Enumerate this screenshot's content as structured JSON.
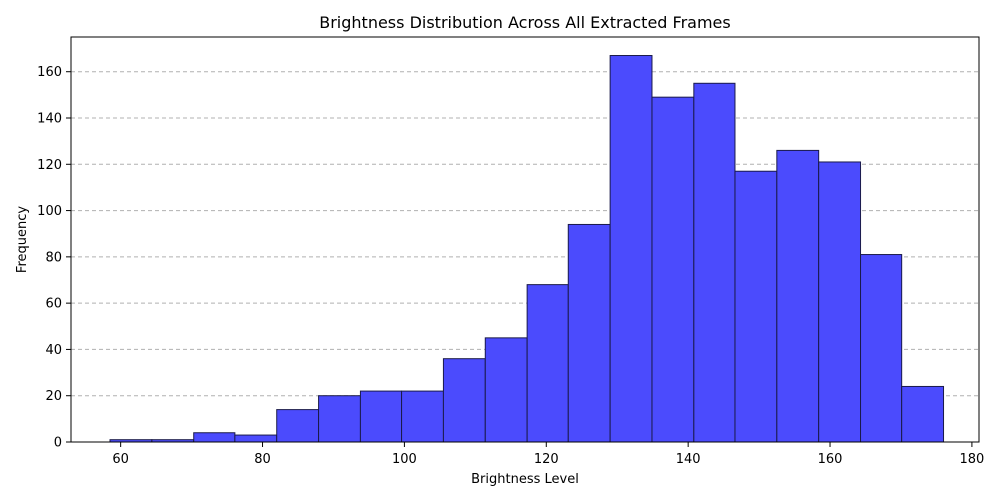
{
  "chart_data": {
    "type": "bar",
    "title": "Brightness Distribution Across All Extracted Frames",
    "xlabel": "Brightness Level",
    "ylabel": "Frequency",
    "xlim": [
      53,
      181
    ],
    "ylim": [
      0,
      175
    ],
    "x_ticks": [
      60,
      80,
      100,
      120,
      140,
      160,
      180
    ],
    "y_ticks": [
      0,
      20,
      40,
      60,
      80,
      100,
      120,
      140,
      160
    ],
    "grid": "y-dashed",
    "bar_color": "#4b4bfd",
    "edge_color": "#1a1a4a",
    "bins": [
      {
        "x0": 58.5,
        "x1": 64.4,
        "count": 1
      },
      {
        "x0": 64.4,
        "x1": 70.3,
        "count": 1
      },
      {
        "x0": 70.3,
        "x1": 76.1,
        "count": 4
      },
      {
        "x0": 76.1,
        "x1": 82.0,
        "count": 3
      },
      {
        "x0": 82.0,
        "x1": 87.9,
        "count": 14
      },
      {
        "x0": 87.9,
        "x1": 93.8,
        "count": 20
      },
      {
        "x0": 93.8,
        "x1": 99.6,
        "count": 22
      },
      {
        "x0": 99.6,
        "x1": 105.5,
        "count": 22
      },
      {
        "x0": 105.5,
        "x1": 111.4,
        "count": 36
      },
      {
        "x0": 111.4,
        "x1": 117.3,
        "count": 45
      },
      {
        "x0": 117.3,
        "x1": 123.1,
        "count": 68
      },
      {
        "x0": 123.1,
        "x1": 129.0,
        "count": 94
      },
      {
        "x0": 129.0,
        "x1": 134.9,
        "count": 167
      },
      {
        "x0": 134.9,
        "x1": 140.8,
        "count": 149
      },
      {
        "x0": 140.8,
        "x1": 146.6,
        "count": 155
      },
      {
        "x0": 146.6,
        "x1": 152.5,
        "count": 117
      },
      {
        "x0": 152.5,
        "x1": 158.4,
        "count": 126
      },
      {
        "x0": 158.4,
        "x1": 164.3,
        "count": 121
      },
      {
        "x0": 164.3,
        "x1": 170.1,
        "count": 81
      },
      {
        "x0": 170.1,
        "x1": 176.0,
        "count": 24
      }
    ]
  }
}
